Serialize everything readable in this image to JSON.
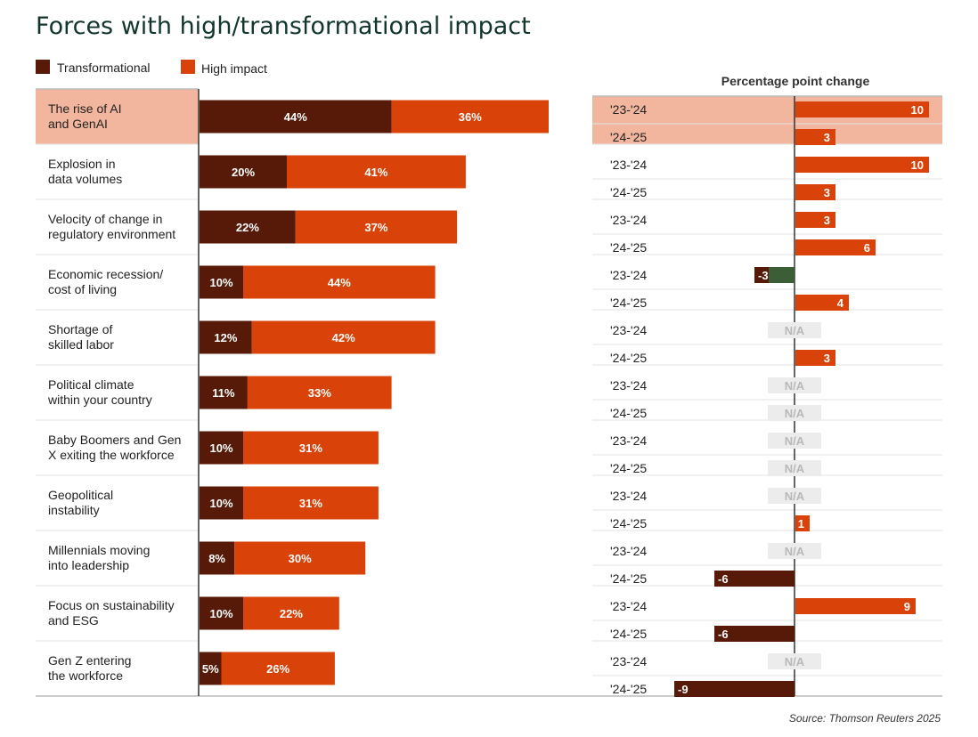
{
  "title": "Forces with high/transformational impact",
  "legend": [
    {
      "label": "Transformational",
      "color": "#571a08"
    },
    {
      "label": "High impact",
      "color": "#d94208"
    }
  ],
  "change_header": "Percentage point change",
  "source": "Source: Thomson Reuters 2025",
  "colors": {
    "transformational": "#571a08",
    "high_impact": "#d94208",
    "highlight": "#f2b59e",
    "positive_change": "#d94208",
    "negative_change": "#571a08",
    "negative_first": "#3b5e37",
    "na_box": "#ececec"
  },
  "chart_data": {
    "type": "bar",
    "stacked": true,
    "orientation": "horizontal",
    "categories": [
      "The rise of AI and GenAI",
      "Explosion in data volumes",
      "Velocity of change in regulatory environment",
      "Economic recession/ cost of living",
      "Shortage of skilled labor",
      "Political climate within your country",
      "Baby Boomers and Gen X exiting the workforce",
      "Geopolitical instability",
      "Millennials moving into leadership",
      "Focus on sustainability and ESG",
      "Gen Z entering the workforce"
    ],
    "category_lines": [
      [
        "The rise of AI",
        "and GenAI"
      ],
      [
        "Explosion in",
        "data volumes"
      ],
      [
        "Velocity of change in",
        "regulatory environment"
      ],
      [
        "Economic recession/",
        "cost of living"
      ],
      [
        "Shortage of",
        "skilled labor"
      ],
      [
        "Political climate",
        "within your country"
      ],
      [
        "Baby Boomers and Gen",
        "X exiting the workforce"
      ],
      [
        "Geopolitical",
        "instability"
      ],
      [
        "Millennials moving",
        "into leadership"
      ],
      [
        "Focus on sustainability",
        "and ESG"
      ],
      [
        "Gen Z entering",
        "the workforce"
      ]
    ],
    "series": [
      {
        "name": "Transformational",
        "values": [
          44,
          20,
          22,
          10,
          12,
          11,
          10,
          10,
          8,
          10,
          5
        ],
        "labels": [
          "44%",
          "20%",
          "22%",
          "10%",
          "12%",
          "11%",
          "10%",
          "10%",
          "8%",
          "10%",
          "5%"
        ]
      },
      {
        "name": "High impact",
        "values": [
          36,
          41,
          37,
          44,
          42,
          33,
          31,
          31,
          30,
          22,
          26
        ],
        "labels": [
          "36%",
          "41%",
          "37%",
          "44%",
          "42%",
          "33%",
          "31%",
          "31%",
          "30%",
          "22%",
          "26%"
        ]
      }
    ],
    "highlighted_category": 0,
    "change_periods": [
      "'23-'24",
      "'24-'25"
    ],
    "percentage_point_change": [
      {
        "change_23_24": 10,
        "change_24_25": 3
      },
      {
        "change_23_24": 10,
        "change_24_25": 3
      },
      {
        "change_23_24": 3,
        "change_24_25": 6
      },
      {
        "change_23_24": -3,
        "change_24_25": 4
      },
      {
        "change_23_24": null,
        "change_24_25": 3
      },
      {
        "change_23_24": null,
        "change_24_25": null
      },
      {
        "change_23_24": null,
        "change_24_25": null
      },
      {
        "change_23_24": null,
        "change_24_25": 1
      },
      {
        "change_23_24": null,
        "change_24_25": -6
      },
      {
        "change_23_24": 9,
        "change_24_25": -6
      },
      {
        "change_23_24": null,
        "change_24_25": -9
      }
    ],
    "na_label": "N/A"
  }
}
